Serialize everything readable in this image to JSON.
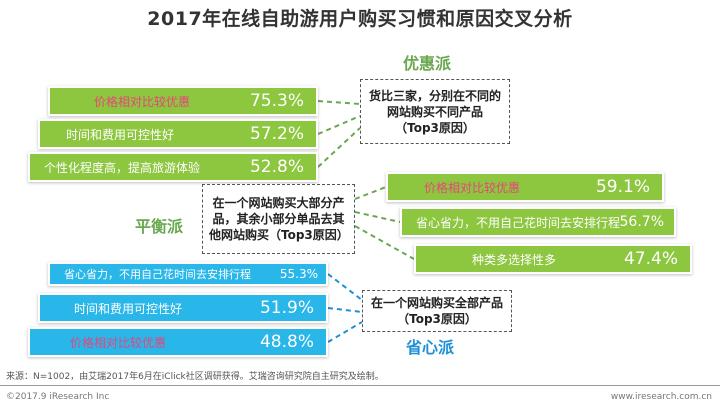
{
  "title": "2017年在线自助游用户购买习惯和原因交叉分析",
  "colors": {
    "green": "#8dc63f",
    "blue": "#29b6e8",
    "red_label": "#e8457a",
    "group_green": "#6aa84f",
    "group_blue": "#1e90d6"
  },
  "chart_data": {
    "type": "bar",
    "groups": [
      {
        "name": "优惠派",
        "callout": "货比三家，分别在不同的网站购买不同产品（Top3原因）",
        "categories": [
          "价格相对比较优惠",
          "时间和费用可控性好",
          "个性化程度高，提高旅游体验"
        ],
        "values": [
          75.3,
          57.2,
          52.8
        ],
        "value_labels": [
          "75.3%",
          "57.2%",
          "52.8%"
        ]
      },
      {
        "name": "平衡派",
        "callout": "在一个网站购买大部分产品，其余小部分单品去其他网站购买（Top3原因）",
        "categories": [
          "价格相对比较优惠",
          "省心省力，不用自己花时间去安排行程",
          "种类多选择性多"
        ],
        "values": [
          59.1,
          56.7,
          47.4
        ],
        "value_labels": [
          "59.1%",
          "56.7%",
          "47.4%"
        ]
      },
      {
        "name": "省心派",
        "callout": "在一个网站购买全部产品（Top3原因）",
        "categories": [
          "省心省力，不用自己花时间去安排行程",
          "时间和费用可控性好",
          "价格相对比较优惠"
        ],
        "values": [
          55.3,
          51.9,
          48.8
        ],
        "value_labels": [
          "55.3%",
          "51.9%",
          "48.8%"
        ]
      }
    ]
  },
  "footer": {
    "source": "来源：N=1002，由艾瑞2017年6月在iClick社区调研获得。艾瑞咨询研究院自主研究及绘制。",
    "copyright": "©2017.9 iResearch Inc",
    "website": "www.iresearch.com.cn"
  }
}
